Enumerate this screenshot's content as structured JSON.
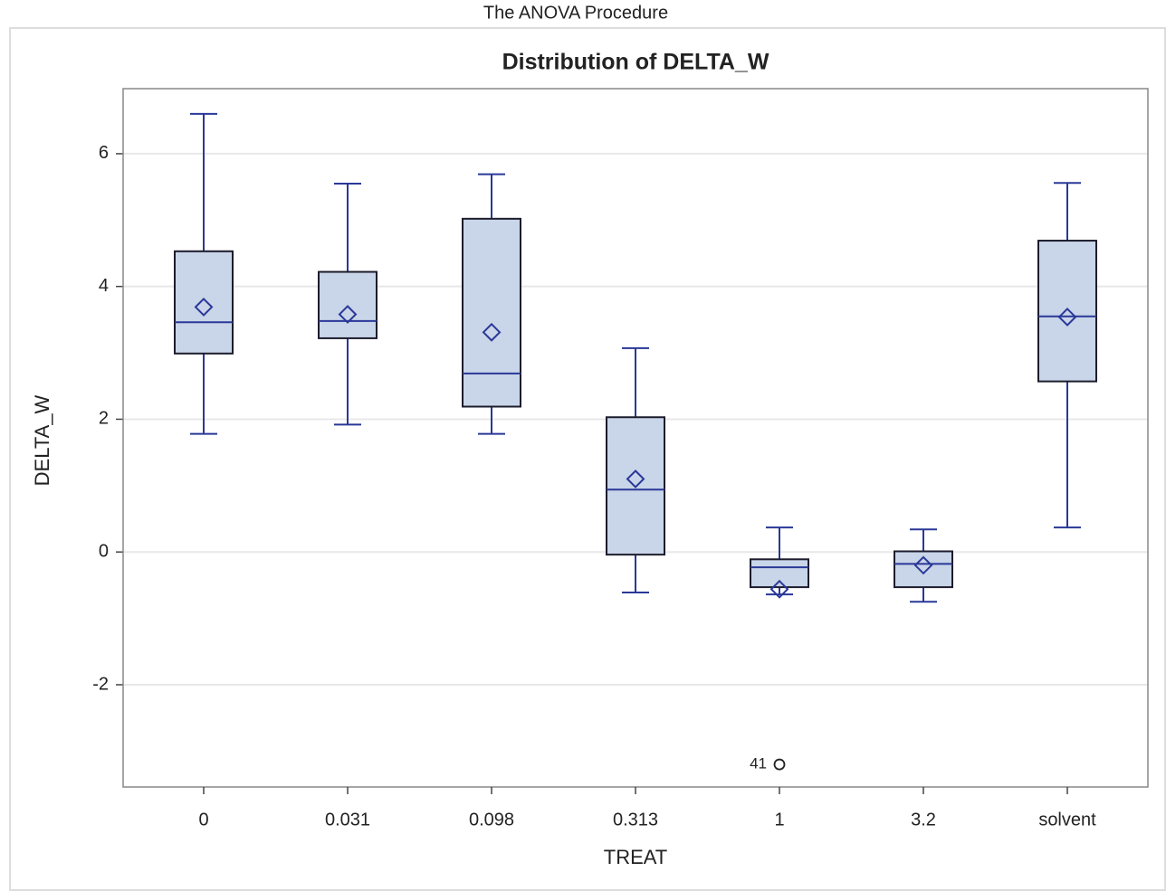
{
  "header": "The ANOVA Procedure",
  "chart_data": {
    "type": "box",
    "title": "Distribution of DELTA_W",
    "x_label": "TREAT",
    "y_label": "DELTA_W",
    "categories": [
      "0",
      "0.031",
      "0.098",
      "0.313",
      "1",
      "3.2",
      "solvent"
    ],
    "boxes": [
      {
        "min": 1.78,
        "q1": 2.99,
        "median": 3.46,
        "q3": 4.53,
        "max": 6.6,
        "mean": 3.69
      },
      {
        "min": 1.92,
        "q1": 3.22,
        "median": 3.48,
        "q3": 4.22,
        "max": 5.55,
        "mean": 3.58
      },
      {
        "min": 1.78,
        "q1": 2.19,
        "median": 2.69,
        "q3": 5.02,
        "max": 5.69,
        "mean": 3.31
      },
      {
        "min": -0.61,
        "q1": -0.04,
        "median": 0.94,
        "q3": 2.03,
        "max": 3.07,
        "mean": 1.1
      },
      {
        "min": -0.64,
        "q1": -0.53,
        "median": -0.23,
        "q3": -0.11,
        "max": 0.37,
        "mean": -0.56
      },
      {
        "min": -0.75,
        "q1": -0.53,
        "median": -0.18,
        "q3": 0.01,
        "max": 0.34,
        "mean": -0.2
      },
      {
        "min": 0.37,
        "q1": 2.57,
        "median": 3.55,
        "q3": 4.69,
        "max": 5.56,
        "mean": 3.54
      }
    ],
    "outliers": [
      {
        "category": "1",
        "value": -3.2,
        "label": "41"
      }
    ],
    "box_color": "#c9d5e8",
    "edge_color": "#1c1c2c",
    "line_color": "#2a3898",
    "ylim": [
      -3.54,
      6.98
    ],
    "yticks": [
      -2,
      0,
      2,
      4,
      6
    ],
    "grid": true
  }
}
